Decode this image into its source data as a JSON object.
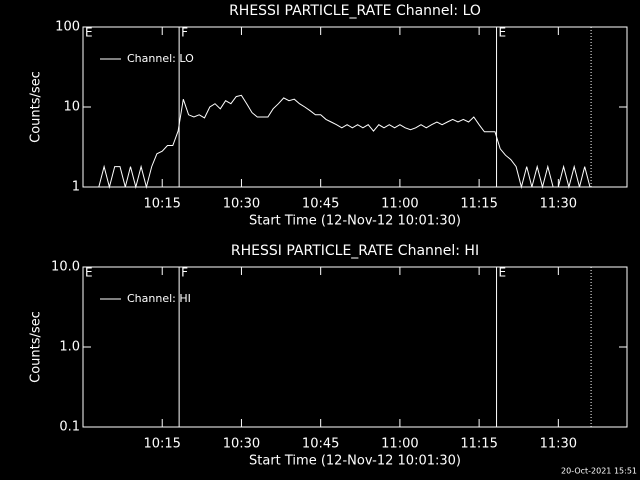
{
  "chart_data": [
    {
      "type": "line",
      "title": "RHESSI PARTICLE_RATE Channel: LO",
      "xlabel": "Start Time (12-Nov-12 10:01:30)",
      "ylabel": "Counts/sec",
      "log_y": true,
      "legend": "upper left",
      "xlim": [
        600,
        703
      ],
      "xticks": [
        {
          "value": 615,
          "label": "10:15"
        },
        {
          "value": 630,
          "label": "10:30"
        },
        {
          "value": 645,
          "label": "10:45"
        },
        {
          "value": 660,
          "label": "11:00"
        },
        {
          "value": 675,
          "label": "11:15"
        },
        {
          "value": 690,
          "label": "11:30"
        }
      ],
      "ylim": [
        1,
        100
      ],
      "yticks": [
        1,
        10,
        100
      ],
      "events": [
        {
          "x": 600,
          "label": "E",
          "style": "solid"
        },
        {
          "x": 618.2,
          "label": "F",
          "style": "solid"
        },
        {
          "x": 678.3,
          "label": "E",
          "style": "solid"
        },
        {
          "x": 696.2,
          "style": "dotted"
        }
      ],
      "x": [
        603,
        604,
        605,
        606,
        607,
        608,
        609,
        610,
        611,
        612,
        613,
        614,
        615,
        616,
        617,
        618,
        619,
        620,
        621,
        622,
        623,
        624,
        625,
        626,
        627,
        628,
        629,
        630,
        631,
        632,
        633,
        634,
        635,
        636,
        637,
        638,
        639,
        640,
        641,
        642,
        643,
        644,
        645,
        646,
        647,
        648,
        649,
        650,
        651,
        652,
        653,
        654,
        655,
        656,
        657,
        658,
        659,
        660,
        661,
        662,
        663,
        664,
        665,
        666,
        667,
        668,
        669,
        670,
        671,
        672,
        673,
        674,
        675,
        676,
        677,
        678,
        679,
        680,
        681,
        682,
        683,
        684,
        685,
        686,
        687,
        688,
        689,
        690,
        691,
        692,
        693,
        694,
        695,
        696
      ],
      "series": [
        {
          "name": "Channel: LO",
          "color": "#ffffff",
          "values": [
            1,
            1.8,
            1,
            1.8,
            1.8,
            1,
            1.8,
            1,
            1.8,
            1,
            1.8,
            2.6,
            2.8,
            3.3,
            3.3,
            5,
            12.5,
            8,
            7.5,
            8,
            7.3,
            10,
            11,
            9.5,
            12,
            11,
            13.5,
            14,
            11,
            8.5,
            7.5,
            7.5,
            7.5,
            9.5,
            11,
            13,
            12,
            12.5,
            11,
            10,
            9,
            8,
            8,
            7,
            6.5,
            6,
            5.5,
            6,
            5.5,
            6,
            5.5,
            6,
            5,
            6,
            5.5,
            6,
            5.5,
            6,
            5.5,
            5.2,
            5.5,
            6,
            5.5,
            6,
            6.5,
            6,
            6.5,
            7,
            6.5,
            7,
            6.5,
            7.5,
            6,
            4.9,
            4.9,
            4.9,
            3,
            2.5,
            2.2,
            1.8,
            1,
            1.8,
            1,
            1.8,
            1,
            1.8,
            1,
            1,
            1.8,
            1,
            1.8,
            1,
            1.8,
            1
          ]
        }
      ]
    },
    {
      "type": "line",
      "title": "RHESSI PARTICLE_RATE Channel: HI",
      "xlabel": "Start Time (12-Nov-12 10:01:30)",
      "ylabel": "Counts/sec",
      "log_y": true,
      "legend": "upper left",
      "xlim": [
        600,
        703
      ],
      "xticks": [
        {
          "value": 615,
          "label": "10:15"
        },
        {
          "value": 630,
          "label": "10:30"
        },
        {
          "value": 645,
          "label": "10:45"
        },
        {
          "value": 660,
          "label": "11:00"
        },
        {
          "value": 675,
          "label": "11:15"
        },
        {
          "value": 690,
          "label": "11:30"
        }
      ],
      "ylim": [
        0.1,
        10
      ],
      "yticks": [
        0.1,
        {
          "value": 1,
          "label": "1.0"
        },
        {
          "value": 10,
          "label": "10.0"
        }
      ],
      "events": [
        {
          "x": 600,
          "label": "E",
          "style": "solid"
        },
        {
          "x": 618.2,
          "label": "F",
          "style": "solid"
        },
        {
          "x": 678.3,
          "label": "E",
          "style": "solid"
        },
        {
          "x": 696.2,
          "style": "dotted"
        }
      ],
      "x": [],
      "series": [
        {
          "name": "Channel: HI",
          "color": "#ffffff",
          "values": []
        }
      ]
    }
  ],
  "footer": "20-Oct-2021 15:51"
}
